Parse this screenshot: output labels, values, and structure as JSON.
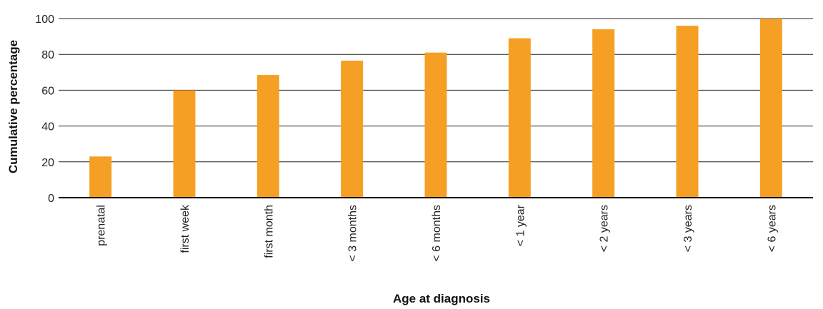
{
  "chart_data": {
    "type": "bar",
    "categories": [
      "prenatal",
      "first week",
      "first month",
      "< 3 months",
      "< 6 months",
      "< 1 year",
      "< 2 years",
      "< 3 years",
      "< 6 years"
    ],
    "values": [
      23,
      60,
      68.5,
      76.5,
      81,
      89,
      94,
      96,
      100
    ],
    "xlabel": "Age at diagnosis",
    "ylabel": "Cumulative percentage",
    "ylim": [
      0,
      100
    ],
    "yticks": [
      0,
      20,
      40,
      60,
      80,
      100
    ],
    "grid": true,
    "bar_color": "#F5A024",
    "grid_color": "#222222"
  }
}
